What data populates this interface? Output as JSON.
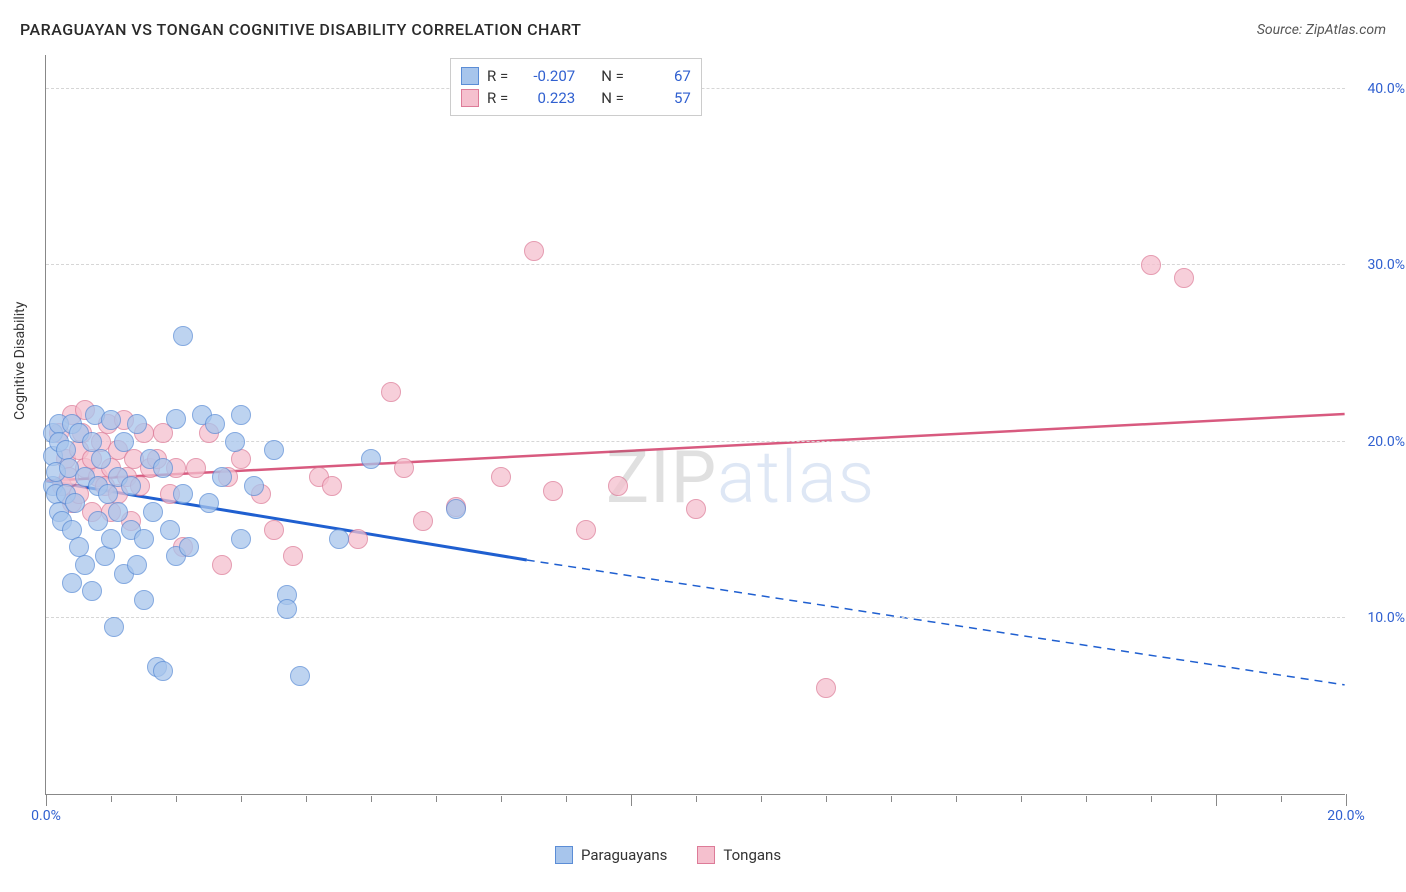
{
  "header": {
    "title": "PARAGUAYAN VS TONGAN COGNITIVE DISABILITY CORRELATION CHART",
    "source_label": "Source:",
    "source_value": "ZipAtlas.com"
  },
  "ylabel": "Cognitive Disability",
  "watermark": {
    "part1": "ZIP",
    "part2": "atlas"
  },
  "axes": {
    "xlim": [
      0,
      20
    ],
    "ylim": [
      0,
      42
    ],
    "yticks": [
      {
        "v": 10,
        "label": "10.0%"
      },
      {
        "v": 20,
        "label": "20.0%"
      },
      {
        "v": 30,
        "label": "30.0%"
      },
      {
        "v": 40,
        "label": "40.0%"
      }
    ],
    "xticks_minor": [
      1,
      2,
      3,
      4,
      5,
      6,
      7,
      8,
      10,
      11,
      12,
      13,
      14,
      15,
      16,
      17,
      19
    ],
    "xticks_major": [
      {
        "v": 0,
        "label": "0.0%"
      },
      {
        "v": 9,
        "label": ""
      },
      {
        "v": 18,
        "label": ""
      },
      {
        "v": 20,
        "label": "20.0%"
      }
    ]
  },
  "series": {
    "blue": {
      "name": "Paraguayans",
      "fill": "#a7c5ec",
      "stroke": "#5b8dd6",
      "line_color": "#1f5fd0",
      "r_value": "-0.207",
      "n_value": "67",
      "marker_radius": 10,
      "trend": {
        "x1": 0,
        "y1": 17.8,
        "x2_solid": 7.4,
        "y2_solid": 13.3,
        "x2": 20,
        "y2": 6.2
      },
      "points": [
        [
          0.1,
          17.5
        ],
        [
          0.1,
          19.2
        ],
        [
          0.1,
          20.5
        ],
        [
          0.15,
          17.0
        ],
        [
          0.15,
          18.3
        ],
        [
          0.2,
          16.0
        ],
        [
          0.2,
          21.0
        ],
        [
          0.2,
          20.0
        ],
        [
          0.25,
          15.5
        ],
        [
          0.3,
          19.5
        ],
        [
          0.3,
          17.0
        ],
        [
          0.35,
          18.5
        ],
        [
          0.4,
          21.0
        ],
        [
          0.4,
          12.0
        ],
        [
          0.4,
          15.0
        ],
        [
          0.45,
          16.5
        ],
        [
          0.5,
          20.5
        ],
        [
          0.5,
          14.0
        ],
        [
          0.6,
          18.0
        ],
        [
          0.6,
          13.0
        ],
        [
          0.7,
          20.0
        ],
        [
          0.7,
          11.5
        ],
        [
          0.75,
          21.5
        ],
        [
          0.8,
          15.5
        ],
        [
          0.8,
          17.5
        ],
        [
          0.85,
          19.0
        ],
        [
          0.9,
          13.5
        ],
        [
          0.95,
          17.0
        ],
        [
          1.0,
          21.2
        ],
        [
          1.0,
          14.5
        ],
        [
          1.05,
          9.5
        ],
        [
          1.1,
          18.0
        ],
        [
          1.1,
          16.0
        ],
        [
          1.2,
          12.5
        ],
        [
          1.2,
          20.0
        ],
        [
          1.3,
          15.0
        ],
        [
          1.3,
          17.5
        ],
        [
          1.4,
          21.0
        ],
        [
          1.4,
          13.0
        ],
        [
          1.5,
          14.5
        ],
        [
          1.5,
          11.0
        ],
        [
          1.6,
          19.0
        ],
        [
          1.65,
          16.0
        ],
        [
          1.7,
          7.2
        ],
        [
          1.8,
          7.0
        ],
        [
          1.8,
          18.5
        ],
        [
          1.9,
          15.0
        ],
        [
          2.0,
          21.3
        ],
        [
          2.0,
          13.5
        ],
        [
          2.1,
          17.0
        ],
        [
          2.1,
          26.0
        ],
        [
          2.2,
          14.0
        ],
        [
          2.4,
          21.5
        ],
        [
          2.5,
          16.5
        ],
        [
          2.6,
          21.0
        ],
        [
          2.7,
          18.0
        ],
        [
          2.9,
          20.0
        ],
        [
          3.0,
          14.5
        ],
        [
          3.0,
          21.5
        ],
        [
          3.2,
          17.5
        ],
        [
          3.5,
          19.5
        ],
        [
          3.7,
          11.3
        ],
        [
          3.7,
          10.5
        ],
        [
          3.9,
          6.7
        ],
        [
          4.5,
          14.5
        ],
        [
          5.0,
          19.0
        ],
        [
          6.3,
          16.2
        ]
      ]
    },
    "pink": {
      "name": "Tongans",
      "fill": "#f5c0ce",
      "stroke": "#dd7b98",
      "line_color": "#d85a7f",
      "r_value": "0.223",
      "n_value": "57",
      "marker_radius": 10,
      "trend": {
        "x1": 0,
        "y1": 17.8,
        "x2": 20,
        "y2": 21.6
      },
      "points": [
        [
          0.2,
          20.5
        ],
        [
          0.25,
          17.5
        ],
        [
          0.3,
          19.0
        ],
        [
          0.35,
          18.0
        ],
        [
          0.4,
          21.5
        ],
        [
          0.4,
          16.5
        ],
        [
          0.5,
          19.5
        ],
        [
          0.5,
          17.0
        ],
        [
          0.55,
          20.5
        ],
        [
          0.6,
          18.5
        ],
        [
          0.6,
          21.8
        ],
        [
          0.7,
          16.0
        ],
        [
          0.7,
          19.0
        ],
        [
          0.8,
          18.0
        ],
        [
          0.85,
          20.0
        ],
        [
          0.9,
          17.5
        ],
        [
          0.95,
          21.0
        ],
        [
          1.0,
          18.5
        ],
        [
          1.0,
          16.0
        ],
        [
          1.1,
          19.5
        ],
        [
          1.1,
          17.0
        ],
        [
          1.2,
          21.2
        ],
        [
          1.25,
          18.0
        ],
        [
          1.3,
          15.5
        ],
        [
          1.35,
          19.0
        ],
        [
          1.45,
          17.5
        ],
        [
          1.5,
          20.5
        ],
        [
          1.6,
          18.5
        ],
        [
          1.7,
          19.0
        ],
        [
          1.8,
          20.5
        ],
        [
          1.9,
          17.0
        ],
        [
          2.0,
          18.5
        ],
        [
          2.1,
          14.0
        ],
        [
          2.3,
          18.5
        ],
        [
          2.5,
          20.5
        ],
        [
          2.7,
          13.0
        ],
        [
          2.8,
          18.0
        ],
        [
          3.0,
          19.0
        ],
        [
          3.3,
          17.0
        ],
        [
          3.5,
          15.0
        ],
        [
          3.8,
          13.5
        ],
        [
          4.2,
          18.0
        ],
        [
          4.4,
          17.5
        ],
        [
          4.8,
          14.5
        ],
        [
          5.3,
          22.8
        ],
        [
          5.5,
          18.5
        ],
        [
          5.8,
          15.5
        ],
        [
          6.3,
          16.3
        ],
        [
          7.0,
          18.0
        ],
        [
          7.5,
          30.8
        ],
        [
          7.8,
          17.2
        ],
        [
          8.3,
          15.0
        ],
        [
          8.8,
          17.5
        ],
        [
          10.0,
          16.2
        ],
        [
          12.0,
          6.0
        ],
        [
          17.0,
          30.0
        ],
        [
          17.5,
          29.3
        ]
      ]
    }
  },
  "legend_top": {
    "r_label": "R =",
    "n_label": "N ="
  },
  "legend_bottom": {},
  "colors": {
    "axis_label": "#3060d0",
    "grid": "#d6d6d6",
    "text": "#333333"
  }
}
